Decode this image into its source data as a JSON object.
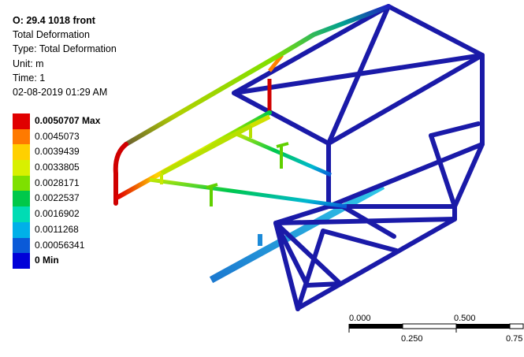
{
  "info": {
    "title": "O: 29.4 1018 front",
    "result": "Total Deformation",
    "type": "Type: Total Deformation",
    "unit": "Unit: m",
    "time": "Time: 1",
    "timestamp": "02-08-2019 01:29 AM"
  },
  "legend": [
    {
      "label": "0.0050707 Max",
      "color": "#e00000",
      "bold": true
    },
    {
      "label": "0.0045073",
      "color": "#ff7a00",
      "bold": false
    },
    {
      "label": "0.0039439",
      "color": "#ffd000",
      "bold": false
    },
    {
      "label": "0.0033805",
      "color": "#d8f000",
      "bold": false
    },
    {
      "label": "0.0028171",
      "color": "#7ee000",
      "bold": false
    },
    {
      "label": "0.0022537",
      "color": "#00c84a",
      "bold": false
    },
    {
      "label": "0.0016902",
      "color": "#00dcb4",
      "bold": false
    },
    {
      "label": "0.0011268",
      "color": "#00b0e8",
      "bold": false
    },
    {
      "label": "0.00056341",
      "color": "#0a5ad8",
      "bold": false
    },
    {
      "label": "0 Min",
      "color": "#0000d8",
      "bold": true
    }
  ],
  "scale_bar": {
    "top_labels": [
      "0.000",
      "0.500"
    ],
    "bottom_labels": [
      "0.250",
      "0.75"
    ]
  }
}
